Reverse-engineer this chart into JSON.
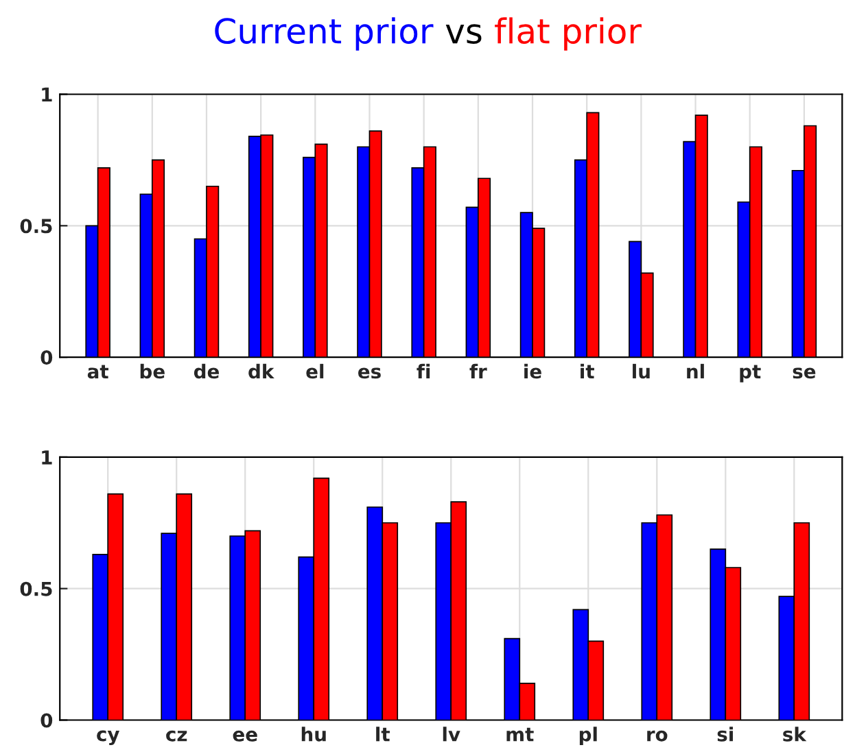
{
  "chart_data": [
    {
      "type": "bar",
      "title": "vs",
      "categories": [
        "at",
        "be",
        "de",
        "dk",
        "el",
        "es",
        "fi",
        "fr",
        "ie",
        "it",
        "lu",
        "nl",
        "pt",
        "se"
      ],
      "series": [
        {
          "name": "Current prior",
          "color": "#0000ff",
          "values": [
            0.5,
            0.62,
            0.45,
            0.84,
            0.76,
            0.8,
            0.72,
            0.57,
            0.55,
            0.75,
            0.44,
            0.82,
            0.59,
            0.71
          ]
        },
        {
          "name": "flat prior",
          "color": "#ff0000",
          "values": [
            0.72,
            0.75,
            0.65,
            0.845,
            0.81,
            0.86,
            0.8,
            0.68,
            0.49,
            0.93,
            0.32,
            0.92,
            0.8,
            0.88
          ]
        }
      ],
      "ylim": [
        0,
        1
      ],
      "yticks": [
        0,
        0.5,
        1
      ],
      "grid": true,
      "legend": false
    },
    {
      "type": "bar",
      "categories": [
        "cy",
        "cz",
        "ee",
        "hu",
        "lt",
        "lv",
        "mt",
        "pl",
        "ro",
        "si",
        "sk"
      ],
      "series": [
        {
          "color": "#0000ff",
          "values": [
            0.63,
            0.71,
            0.7,
            0.62,
            0.81,
            0.75,
            0.31,
            0.42,
            0.75,
            0.65,
            0.47
          ]
        },
        {
          "color": "#ff0000",
          "values": [
            0.86,
            0.86,
            0.72,
            0.92,
            0.75,
            0.83,
            0.14,
            0.3,
            0.78,
            0.58,
            0.75
          ]
        }
      ],
      "ylim": [
        0,
        1
      ],
      "yticks": [
        0,
        0.5,
        1
      ],
      "grid": true,
      "legend": false
    }
  ]
}
